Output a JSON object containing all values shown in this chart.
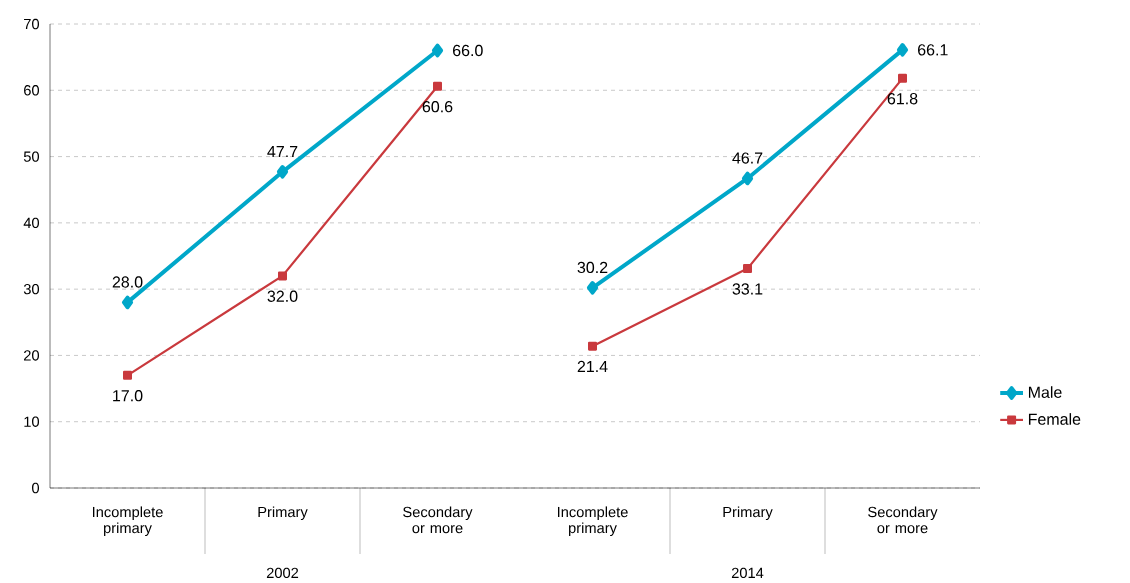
{
  "chart_data": [
    {
      "type": "line",
      "xlabel": "2002",
      "categories": [
        "Incomplete primary",
        "Primary",
        "Secondary or more"
      ],
      "ylim": [
        0,
        70
      ],
      "yticks": [
        0,
        10,
        20,
        30,
        40,
        50,
        60,
        70
      ],
      "grid": "y",
      "legend": false,
      "tick_labels": "xy",
      "series": [
        {
          "color": "#00a7c9",
          "marker": "diamond",
          "values": [
            28.0,
            47.7,
            66.0
          ],
          "value_labels": [
            "28.0",
            "47.7",
            "66.0"
          ]
        },
        {
          "color": "#c9393d",
          "marker": "square",
          "values": [
            17.0,
            32.0,
            60.6
          ],
          "value_labels": [
            "17.0",
            "32.0",
            "60.6"
          ]
        }
      ]
    },
    {
      "type": "line",
      "xlabel": "2014",
      "categories": [
        "Incomplete primary",
        "Primary",
        "Secondary or more"
      ],
      "ylim": [
        0,
        70
      ],
      "yticks": [
        0,
        10,
        20,
        30,
        40,
        50,
        60,
        70
      ],
      "grid": "y",
      "legend": "right",
      "tick_labels": "x",
      "series": [
        {
          "name": "Male",
          "color": "#00a7c9",
          "marker": "diamond",
          "values": [
            30.2,
            46.7,
            66.1
          ],
          "value_labels": [
            "30.2",
            "46.7",
            "66.1"
          ]
        },
        {
          "name": "Female",
          "color": "#c9393d",
          "marker": "square",
          "values": [
            21.4,
            33.1,
            61.8
          ],
          "value_labels": [
            "21.4",
            "33.1",
            "61.8"
          ]
        }
      ]
    }
  ]
}
